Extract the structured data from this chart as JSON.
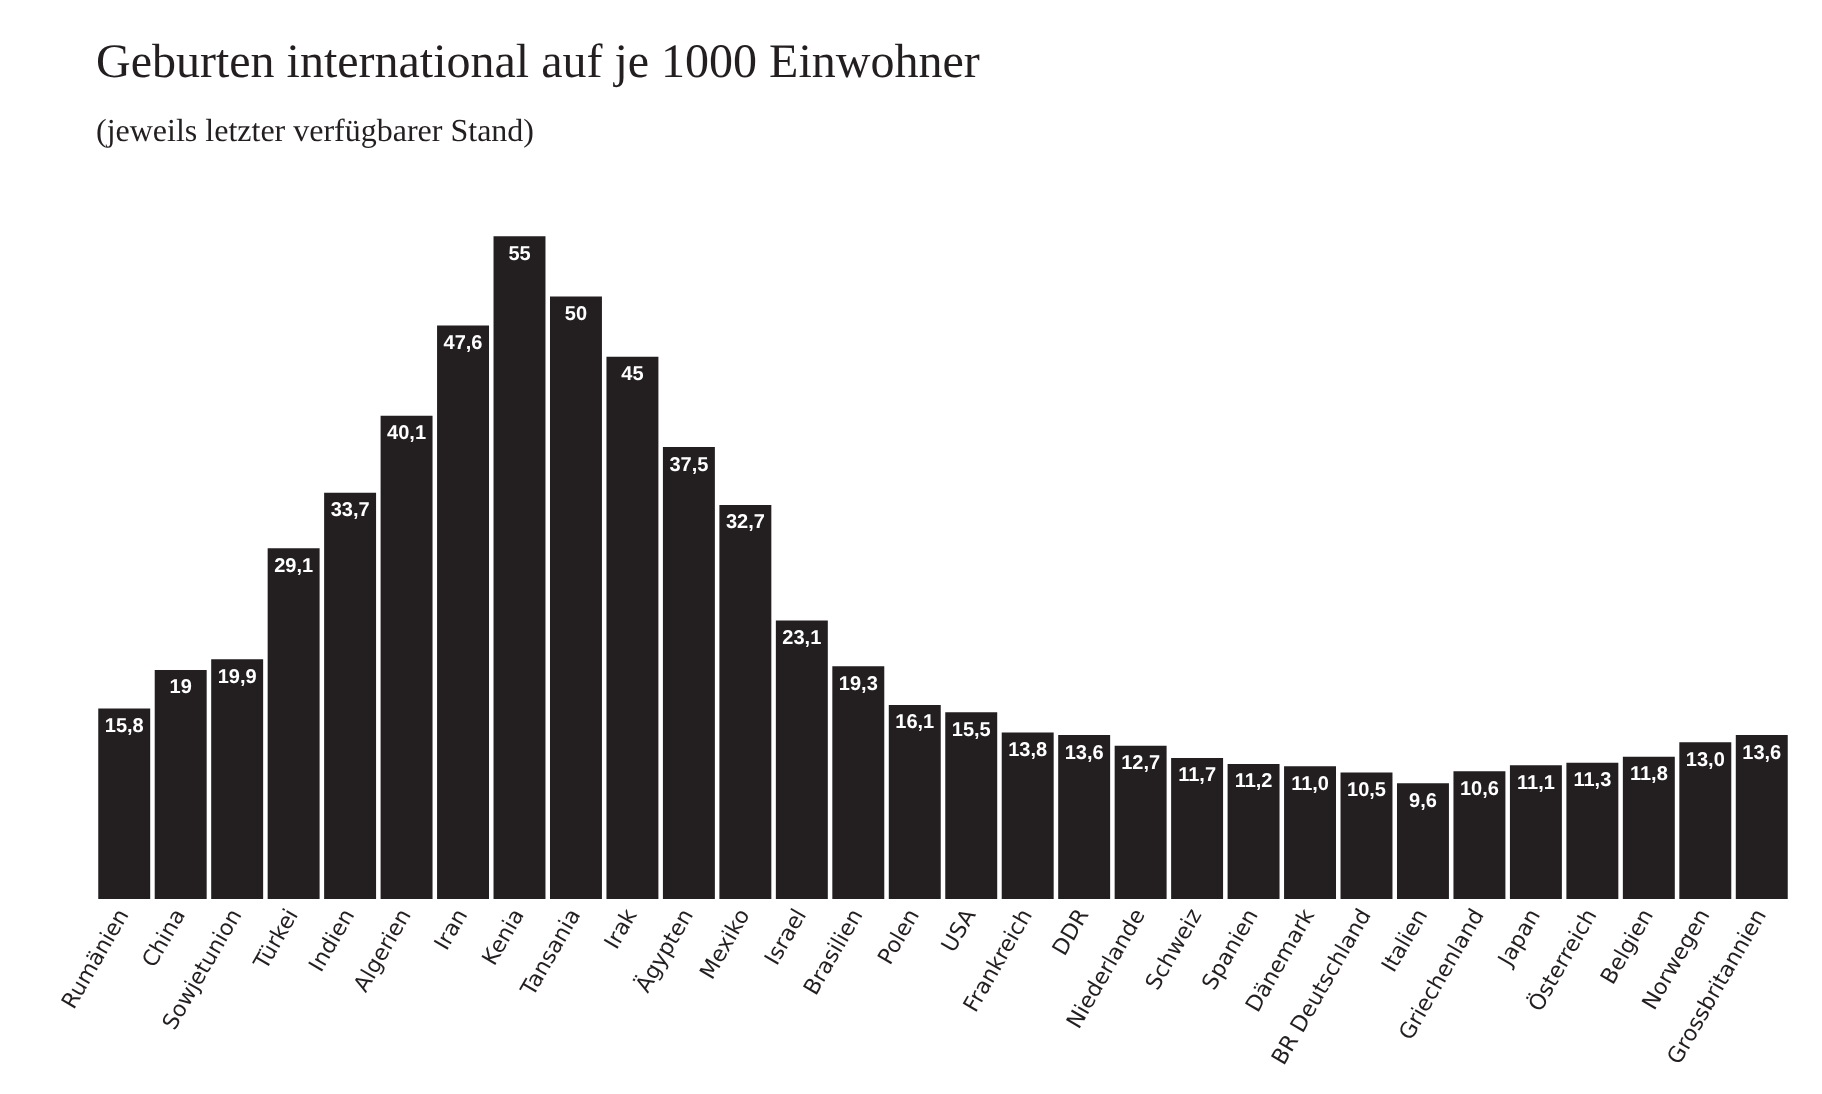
{
  "chart_data": {
    "type": "bar",
    "title": "Geburten international auf je 1000 Einwohner",
    "subtitle": "(jeweils letzter verfügbarer Stand)",
    "categories": [
      "Rumänien",
      "China",
      "Sowjetunion",
      "Türkei",
      "Indien",
      "Algerien",
      "Iran",
      "Kenia",
      "Tansania",
      "Irak",
      "Ägypten",
      "Mexiko",
      "Israel",
      "Brasilien",
      "Polen",
      "USA",
      "Frankreich",
      "DDR",
      "Niederlande",
      "Schweiz",
      "Spanien",
      "Dänemark",
      "BR Deutschland",
      "Italien",
      "Griechenland",
      "Japan",
      "Österreich",
      "Belgien",
      "Norwegen",
      "Grossbritannien"
    ],
    "values": [
      15.8,
      19,
      19.9,
      29.1,
      33.7,
      40.1,
      47.6,
      55,
      50,
      45,
      37.5,
      32.7,
      23.1,
      19.3,
      16.1,
      15.5,
      13.8,
      13.6,
      12.7,
      11.7,
      11.2,
      11.0,
      10.5,
      9.6,
      10.6,
      11.1,
      11.3,
      11.8,
      13.0,
      13.6
    ],
    "value_labels": [
      "15,8",
      "19",
      "19,9",
      "29,1",
      "33,7",
      "40,1",
      "47,6",
      "55",
      "50",
      "45",
      "37,5",
      "32,7",
      "23,1",
      "19,3",
      "16,1",
      "15,5",
      "13,8",
      "13,6",
      "12,7",
      "11,7",
      "11,2",
      "11,0",
      "10,5",
      "9,6",
      "10,6",
      "11,1",
      "11,3",
      "11,8",
      "13,0",
      "13,6"
    ],
    "color": "#231f20",
    "tick_labels": "x"
  }
}
